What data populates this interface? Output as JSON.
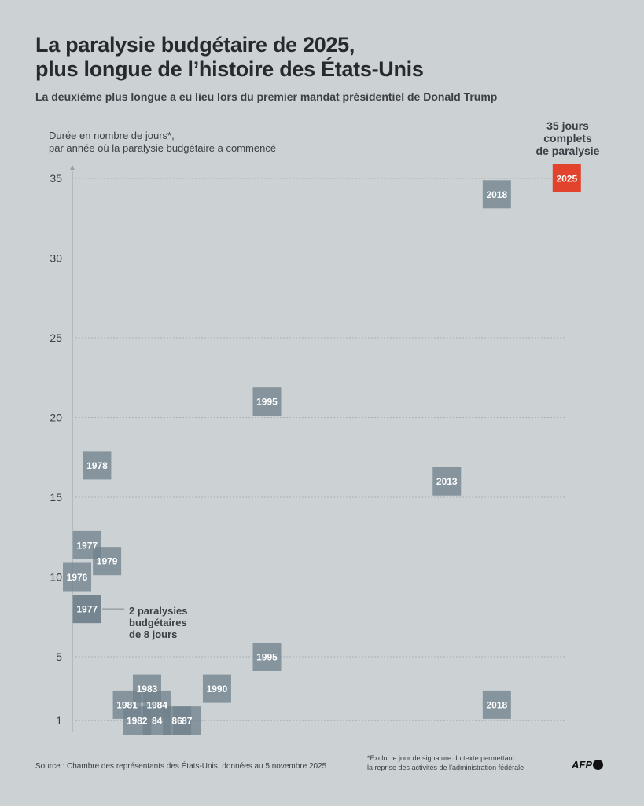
{
  "header": {
    "title_line1": "La paralysie budgétaire de 2025,",
    "title_line2": "plus longue de l’histoire des États-Unis",
    "subtitle": "La deuxième plus longue a eu lieu lors du premier mandat présidentiel de Donald Trump"
  },
  "chart_data": {
    "type": "scatter",
    "ylabel_line1": "Durée en nombre de jours*,",
    "ylabel_line2": "par année où la paralysie budgétaire a commencé",
    "yticks": [
      1,
      5,
      10,
      15,
      20,
      25,
      30,
      35
    ],
    "ylim": [
      1,
      35
    ],
    "xlim": [
      1976,
      2025
    ],
    "grid": true,
    "points": [
      {
        "year": 1976,
        "label": "1976",
        "days": 10
      },
      {
        "year": 1977,
        "label": "1977",
        "days": 12
      },
      {
        "year": 1977,
        "label": "1977",
        "days": 8
      },
      {
        "year": 1977,
        "label": "",
        "days": 8
      },
      {
        "year": 1978,
        "label": "1978",
        "days": 17
      },
      {
        "year": 1979,
        "label": "1979",
        "days": 11
      },
      {
        "year": 1981,
        "label": "1981",
        "days": 2
      },
      {
        "year": 1982,
        "label": "1982",
        "days": 1
      },
      {
        "year": 1983,
        "label": "1983",
        "days": 3
      },
      {
        "year": 1984,
        "label": "1984",
        "days": 2
      },
      {
        "year": 1984,
        "label": "84",
        "days": 1
      },
      {
        "year": 1986,
        "label": "86",
        "days": 1
      },
      {
        "year": 1987,
        "label": "87",
        "days": 1
      },
      {
        "year": 1990,
        "label": "1990",
        "days": 3
      },
      {
        "year": 1995,
        "label": "1995",
        "days": 5
      },
      {
        "year": 1995,
        "label": "1995",
        "days": 21
      },
      {
        "year": 2013,
        "label": "2013",
        "days": 16
      },
      {
        "year": 2018,
        "label": "2018",
        "days": 2
      },
      {
        "year": 2018,
        "label": "2018",
        "days": 34
      },
      {
        "year": 2025,
        "label": "2025",
        "days": 35,
        "highlight": true
      }
    ],
    "annotations": {
      "double_1977": [
        "2 paralysies",
        "budgétaires",
        "de 8 jours"
      ],
      "record_2025": [
        "35 jours",
        "complets",
        "de paralysie"
      ]
    }
  },
  "colors": {
    "box": "#71838d",
    "highlight": "#e2432c",
    "background": "#ccd1d4"
  },
  "footer": {
    "source": "Source : Chambre des représentants des États-Unis, données au 5 novembre 2025",
    "note_line1": "*Exclut le jour de signature du texte permettant",
    "note_line2": "la reprise des activités de l’administration fédérale",
    "logo": "AFP"
  }
}
